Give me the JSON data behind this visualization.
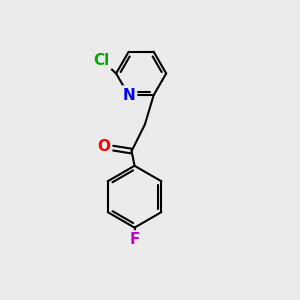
{
  "bg_color": "#ebebeb",
  "bond_color": "#000000",
  "bond_width": 1.5,
  "atom_colors": {
    "Cl": "#00aa00",
    "N": "#0000ff",
    "O": "#ff0000",
    "F": "#cc00cc"
  },
  "font_size_atoms": 11,
  "xlim": [
    0,
    10
  ],
  "ylim": [
    0,
    10
  ]
}
